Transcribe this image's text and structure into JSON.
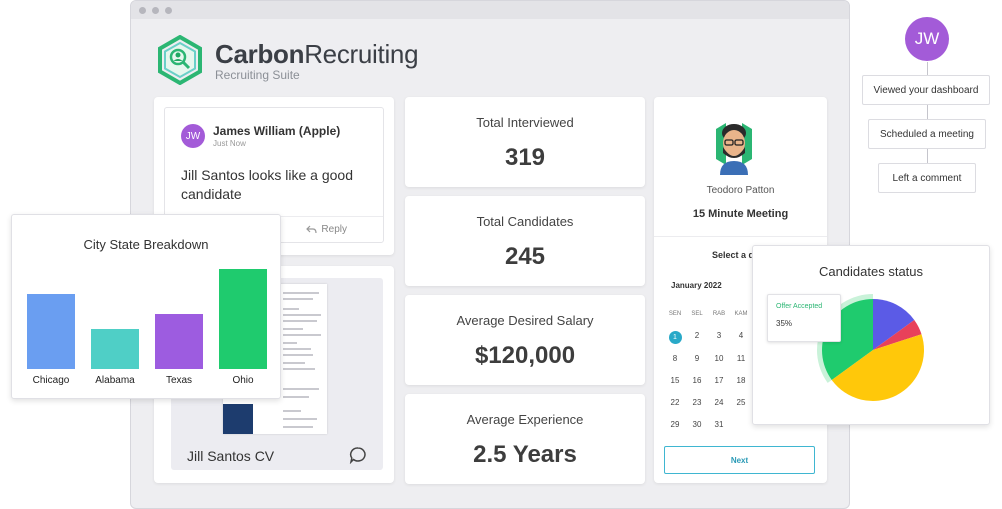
{
  "brand": {
    "name_bold": "Carbon",
    "name_rest": "Recruiting",
    "subtitle": "Recruiting Suite",
    "color": "#2bb673"
  },
  "comment": {
    "avatar": "JW",
    "author": "James William (Apple)",
    "time": "Just Now",
    "text": "Jill Santos looks like a good candidate",
    "reply_label": "Reply",
    "reply_icon": "reply-icon"
  },
  "cv": {
    "label": "Jill Santos CV",
    "icon": "chat-bubble-icon"
  },
  "stats": [
    {
      "label": "Total Interviewed",
      "value": "319"
    },
    {
      "label": "Total Candidates",
      "value": "245"
    },
    {
      "label": "Average Desired Salary",
      "value": "$120,000"
    },
    {
      "label": "Average Experience",
      "value": "2.5 Years"
    }
  ],
  "meeting": {
    "person": "Teodoro Patton",
    "title": "15 Minute Meeting",
    "select_label": "Select a d",
    "month": "January 2022",
    "weekdays": [
      "SEN",
      "SEL",
      "RAB",
      "KAM"
    ],
    "weeks": [
      [
        "1",
        "2",
        "3",
        "4"
      ],
      [
        "8",
        "9",
        "10",
        "11"
      ],
      [
        "15",
        "16",
        "17",
        "18"
      ],
      [
        "22",
        "23",
        "24",
        "25"
      ],
      [
        "29",
        "30",
        "31",
        ""
      ]
    ],
    "selected_day": "1",
    "next_label": "Next",
    "accent": "#29a9c8"
  },
  "chart_data": [
    {
      "type": "bar",
      "title": "City State Breakdown",
      "categories": [
        "Chicago",
        "Alabama",
        "Texas",
        "Ohio"
      ],
      "values": [
        75,
        40,
        55,
        100
      ],
      "colors": [
        "#6a9ef1",
        "#4fcfc6",
        "#9d5ce0",
        "#1fcb6e"
      ],
      "xlabel": "",
      "ylabel": "",
      "ylim": [
        0,
        100
      ],
      "grid": false
    },
    {
      "type": "pie",
      "title": "Candidates status",
      "slices": [
        {
          "label": "Offer Accepted",
          "value": 35,
          "color": "#1fcb6e"
        },
        {
          "label": "",
          "value": 15,
          "color": "#5b5be6"
        },
        {
          "label": "",
          "value": 5,
          "color": "#e8415a"
        },
        {
          "label": "",
          "value": 45,
          "color": "#ffc80a"
        }
      ],
      "tooltip": {
        "label": "Offer Accepted",
        "value": "35%"
      }
    }
  ],
  "timeline": {
    "avatar": "JW",
    "avatar_color": "#a35bd8",
    "items": [
      "Viewed your dashboard",
      "Scheduled a meeting",
      "Left a comment"
    ]
  }
}
